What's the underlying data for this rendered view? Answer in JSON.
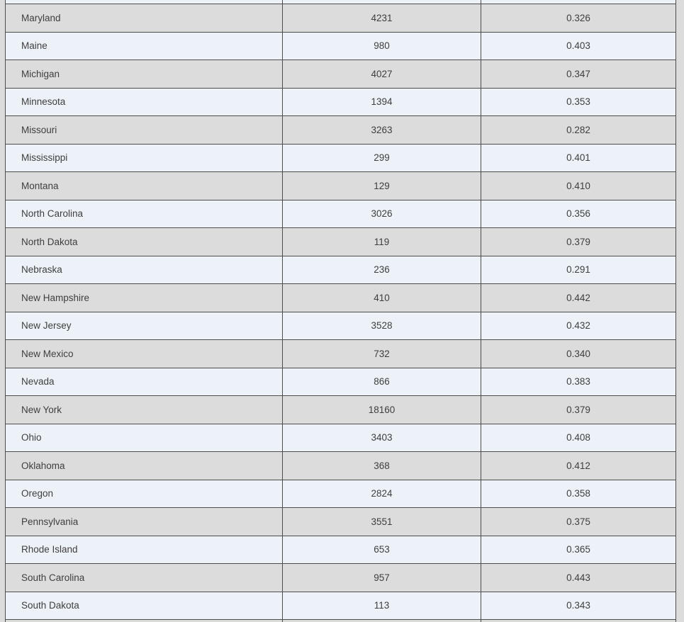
{
  "colors": {
    "page_background": "#dcdcdc",
    "row_gray": "#dcdcdc",
    "row_light": "#edf2f8",
    "border": "#4d4d4d",
    "text": "#3e3e3e"
  },
  "table": {
    "rows": [
      {
        "state": "Maryland",
        "count": "4231",
        "ratio": "0.326"
      },
      {
        "state": "Maine",
        "count": "980",
        "ratio": "0.403"
      },
      {
        "state": "Michigan",
        "count": "4027",
        "ratio": "0.347"
      },
      {
        "state": "Minnesota",
        "count": "1394",
        "ratio": "0.353"
      },
      {
        "state": "Missouri",
        "count": "3263",
        "ratio": "0.282"
      },
      {
        "state": "Mississippi",
        "count": "299",
        "ratio": "0.401"
      },
      {
        "state": "Montana",
        "count": "129",
        "ratio": "0.410"
      },
      {
        "state": "North Carolina",
        "count": "3026",
        "ratio": "0.356"
      },
      {
        "state": "North Dakota",
        "count": "119",
        "ratio": "0.379"
      },
      {
        "state": "Nebraska",
        "count": "236",
        "ratio": "0.291"
      },
      {
        "state": "New Hampshire",
        "count": "410",
        "ratio": "0.442"
      },
      {
        "state": "New Jersey",
        "count": "3528",
        "ratio": "0.432"
      },
      {
        "state": "New Mexico",
        "count": "732",
        "ratio": "0.340"
      },
      {
        "state": "Nevada",
        "count": "866",
        "ratio": "0.383"
      },
      {
        "state": "New York",
        "count": "18160",
        "ratio": "0.379"
      },
      {
        "state": "Ohio",
        "count": "3403",
        "ratio": "0.408"
      },
      {
        "state": "Oklahoma",
        "count": "368",
        "ratio": "0.412"
      },
      {
        "state": "Oregon",
        "count": "2824",
        "ratio": "0.358"
      },
      {
        "state": "Pennsylvania",
        "count": "3551",
        "ratio": "0.375"
      },
      {
        "state": "Rhode Island",
        "count": "653",
        "ratio": "0.365"
      },
      {
        "state": "South Carolina",
        "count": "957",
        "ratio": "0.443"
      },
      {
        "state": "South Dakota",
        "count": "113",
        "ratio": "0.343"
      }
    ]
  }
}
